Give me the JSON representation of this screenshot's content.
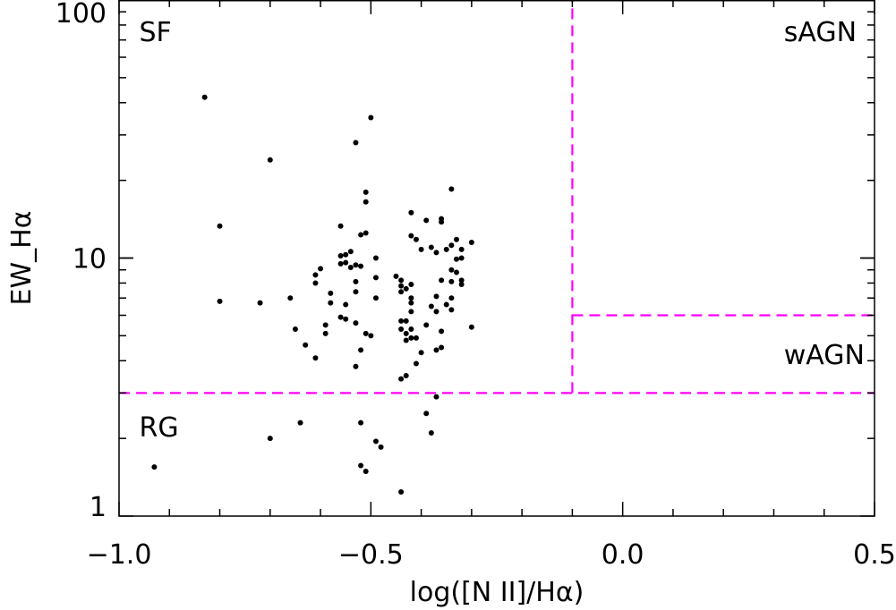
{
  "chart_data": {
    "type": "scatter",
    "title": "",
    "xlabel": "log([N II]/Hα)",
    "ylabel": "EW_Hα",
    "xlim": [
      -1.0,
      0.5
    ],
    "ylim": [
      1,
      100
    ],
    "yscale": "log",
    "grid": false,
    "x_ticks": [
      -1.0,
      -0.5,
      0.0,
      0.5
    ],
    "x_tick_labels": [
      "−1.0",
      "−0.5",
      "0.0",
      "0.5"
    ],
    "y_ticks": [
      1,
      10,
      100
    ],
    "y_tick_labels": [
      "1",
      "10",
      "100"
    ],
    "region_labels": [
      {
        "text": "SF",
        "x": -0.96,
        "y": 75
      },
      {
        "text": "sAGN",
        "x": 0.32,
        "y": 75
      },
      {
        "text": "wAGN",
        "x": 0.32,
        "y": 4.2
      },
      {
        "text": "RG",
        "x": -0.96,
        "y": 2.2
      }
    ],
    "boundary_color": "#ff00ff",
    "point_color": "#000000",
    "boundaries": [
      {
        "name": "rg-boundary",
        "points": [
          [
            -1.0,
            3.0
          ],
          [
            0.5,
            3.0
          ]
        ]
      },
      {
        "name": "nii-boundary",
        "points": [
          [
            -0.1,
            3.0
          ],
          [
            -0.1,
            100
          ]
        ]
      },
      {
        "name": "wagn-boundary",
        "points": [
          [
            -0.1,
            6.0
          ],
          [
            0.5,
            6.0
          ]
        ]
      }
    ],
    "points": [
      {
        "x": -0.83,
        "y": 42
      },
      {
        "x": -0.5,
        "y": 35
      },
      {
        "x": -0.53,
        "y": 28
      },
      {
        "x": -0.7,
        "y": 24
      },
      {
        "x": -0.34,
        "y": 18.5
      },
      {
        "x": -0.51,
        "y": 18
      },
      {
        "x": -0.51,
        "y": 16.5
      },
      {
        "x": -0.42,
        "y": 15
      },
      {
        "x": -0.36,
        "y": 14.2
      },
      {
        "x": -0.39,
        "y": 14
      },
      {
        "x": -0.36,
        "y": 13.8
      },
      {
        "x": -0.8,
        "y": 13.3
      },
      {
        "x": -0.56,
        "y": 13.3
      },
      {
        "x": -0.51,
        "y": 12.5
      },
      {
        "x": -0.52,
        "y": 12.3
      },
      {
        "x": -0.42,
        "y": 12.2
      },
      {
        "x": -0.41,
        "y": 11.8
      },
      {
        "x": -0.33,
        "y": 11.8
      },
      {
        "x": -0.3,
        "y": 11.5
      },
      {
        "x": -0.34,
        "y": 11.2
      },
      {
        "x": -0.38,
        "y": 11
      },
      {
        "x": -0.4,
        "y": 10.8
      },
      {
        "x": -0.35,
        "y": 10.8
      },
      {
        "x": -0.32,
        "y": 10.8
      },
      {
        "x": -0.37,
        "y": 10.5
      },
      {
        "x": -0.54,
        "y": 10.6
      },
      {
        "x": -0.55,
        "y": 10.3
      },
      {
        "x": -0.56,
        "y": 10.2
      },
      {
        "x": -0.49,
        "y": 10
      },
      {
        "x": -0.32,
        "y": 10
      },
      {
        "x": -0.33,
        "y": 9.9
      },
      {
        "x": -0.55,
        "y": 9.6
      },
      {
        "x": -0.56,
        "y": 9.5
      },
      {
        "x": -0.53,
        "y": 9.4
      },
      {
        "x": -0.52,
        "y": 9.3
      },
      {
        "x": -0.54,
        "y": 9.2
      },
      {
        "x": -0.6,
        "y": 9.1
      },
      {
        "x": -0.34,
        "y": 9
      },
      {
        "x": -0.33,
        "y": 8.8
      },
      {
        "x": -0.61,
        "y": 8.6
      },
      {
        "x": -0.45,
        "y": 8.5
      },
      {
        "x": -0.49,
        "y": 8.4
      },
      {
        "x": -0.44,
        "y": 8.2
      },
      {
        "x": -0.36,
        "y": 8.2
      },
      {
        "x": -0.34,
        "y": 8.1
      },
      {
        "x": -0.32,
        "y": 8.2
      },
      {
        "x": -0.61,
        "y": 8
      },
      {
        "x": -0.53,
        "y": 8.1
      },
      {
        "x": -0.42,
        "y": 7.9
      },
      {
        "x": -0.32,
        "y": 7.9
      },
      {
        "x": -0.44,
        "y": 7.8
      },
      {
        "x": -0.43,
        "y": 7.6
      },
      {
        "x": -0.44,
        "y": 7.4
      },
      {
        "x": -0.53,
        "y": 7.4
      },
      {
        "x": -0.58,
        "y": 7.3
      },
      {
        "x": -0.37,
        "y": 7.1
      },
      {
        "x": -0.66,
        "y": 7
      },
      {
        "x": -0.49,
        "y": 7
      },
      {
        "x": -0.42,
        "y": 7
      },
      {
        "x": -0.34,
        "y": 7
      },
      {
        "x": -0.8,
        "y": 6.8
      },
      {
        "x": -0.72,
        "y": 6.7
      },
      {
        "x": -0.58,
        "y": 6.7
      },
      {
        "x": -0.42,
        "y": 6.7
      },
      {
        "x": -0.55,
        "y": 6.6
      },
      {
        "x": -0.35,
        "y": 6.6
      },
      {
        "x": -0.38,
        "y": 6.5
      },
      {
        "x": -0.34,
        "y": 6.3
      },
      {
        "x": -0.42,
        "y": 6.2
      },
      {
        "x": -0.37,
        "y": 6.2
      },
      {
        "x": -0.56,
        "y": 5.9
      },
      {
        "x": -0.55,
        "y": 5.8
      },
      {
        "x": -0.44,
        "y": 5.7
      },
      {
        "x": -0.43,
        "y": 5.7
      },
      {
        "x": -0.53,
        "y": 5.6
      },
      {
        "x": -0.59,
        "y": 5.5
      },
      {
        "x": -0.39,
        "y": 5.5
      },
      {
        "x": -0.3,
        "y": 5.4
      },
      {
        "x": -0.65,
        "y": 5.3
      },
      {
        "x": -0.44,
        "y": 5.3
      },
      {
        "x": -0.42,
        "y": 5.3
      },
      {
        "x": -0.59,
        "y": 5.1
      },
      {
        "x": -0.43,
        "y": 5.1
      },
      {
        "x": -0.51,
        "y": 5.1
      },
      {
        "x": -0.5,
        "y": 5
      },
      {
        "x": -0.36,
        "y": 5.2
      },
      {
        "x": -0.42,
        "y": 4.9
      },
      {
        "x": -0.41,
        "y": 4.9
      },
      {
        "x": -0.43,
        "y": 4.8
      },
      {
        "x": -0.63,
        "y": 4.6
      },
      {
        "x": -0.36,
        "y": 4.5
      },
      {
        "x": -0.52,
        "y": 4.4
      },
      {
        "x": -0.4,
        "y": 4.3
      },
      {
        "x": -0.37,
        "y": 4.4
      },
      {
        "x": -0.61,
        "y": 4.1
      },
      {
        "x": -0.41,
        "y": 3.9
      },
      {
        "x": -0.53,
        "y": 3.8
      },
      {
        "x": -0.43,
        "y": 3.5
      },
      {
        "x": -0.44,
        "y": 3.4
      },
      {
        "x": -0.37,
        "y": 2.9
      },
      {
        "x": -0.39,
        "y": 2.5
      },
      {
        "x": -0.64,
        "y": 2.3
      },
      {
        "x": -0.52,
        "y": 2.3
      },
      {
        "x": -0.38,
        "y": 2.1
      },
      {
        "x": -0.7,
        "y": 2
      },
      {
        "x": -0.49,
        "y": 1.95
      },
      {
        "x": -0.48,
        "y": 1.85
      },
      {
        "x": -0.93,
        "y": 1.55
      },
      {
        "x": -0.52,
        "y": 1.57
      },
      {
        "x": -0.51,
        "y": 1.49
      },
      {
        "x": -0.44,
        "y": 1.24
      }
    ]
  }
}
